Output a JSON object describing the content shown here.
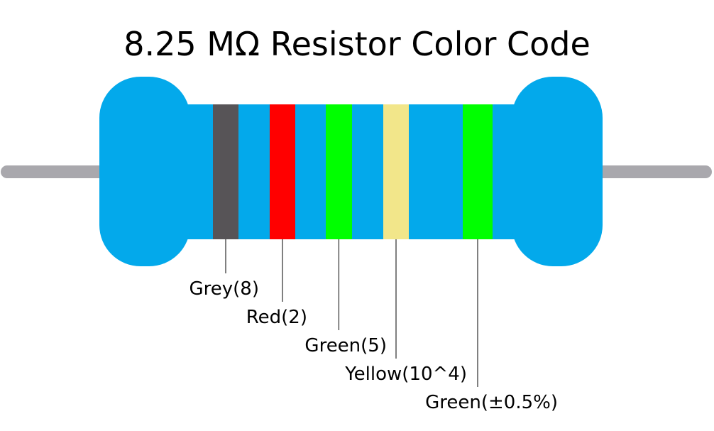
{
  "title": "8.25 MΩ Resistor Color Code",
  "body_color": "#03a9eb",
  "lead_color": "#a9a8ad",
  "bands": [
    {
      "color": "#575457",
      "label": "Grey(8)"
    },
    {
      "color": "#ff0000",
      "label": "Red(2)"
    },
    {
      "color": "#00ff00",
      "label": "Green(5)"
    },
    {
      "color": "#f2e68a",
      "label": "Yellow(10^4)"
    },
    {
      "color": "#00ff00",
      "label": "Green(±0.5%)"
    }
  ]
}
